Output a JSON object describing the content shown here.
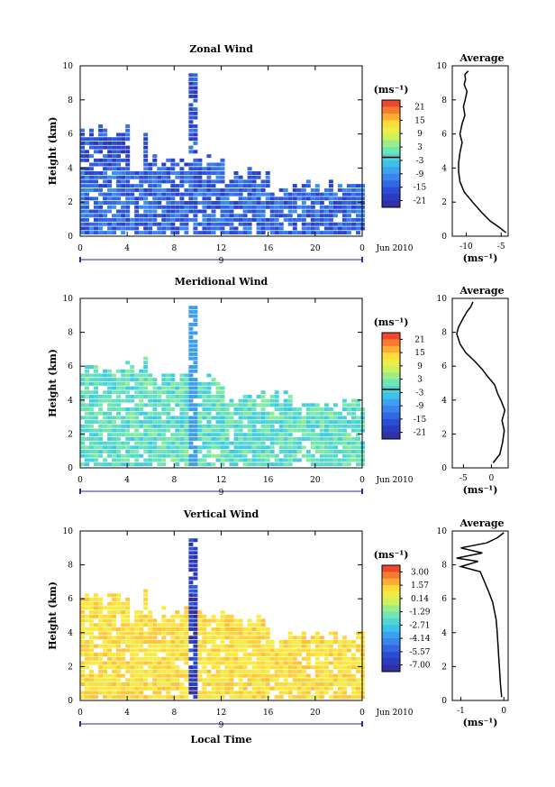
{
  "figure": {
    "xlabel": "Local Time",
    "date_label": "Jun 2010"
  },
  "chart_data": [
    {
      "type": "heatmap",
      "title": "Zonal Wind",
      "ylabel": "Height (km)",
      "xlabel": "",
      "xlim": [
        0,
        24
      ],
      "ylim": [
        0,
        10
      ],
      "x_ticks": [
        "0",
        "4",
        "8",
        "12",
        "16",
        "20",
        "0"
      ],
      "y_ticks": [
        "0",
        "2",
        "4",
        "6",
        "8",
        "10"
      ],
      "date_marker": "9",
      "colorbar": {
        "unit": "(ms⁻¹)",
        "ticks": [
          "21",
          "15",
          "9",
          "3",
          "-3",
          "-9",
          "-15",
          "-21"
        ],
        "zero_line_value": 0
      },
      "field": {
        "dominant_range": [
          -21,
          -3
        ],
        "description_tones": [
          "blue",
          "light blue",
          "cyan"
        ]
      }
    },
    {
      "type": "line",
      "title": "Average",
      "xlabel": "(ms⁻¹)",
      "x_ticks": [
        "-10",
        "-5"
      ],
      "y_ticks": [
        "0",
        "2",
        "4",
        "6",
        "8",
        "10"
      ],
      "xlim": [
        -12,
        -4
      ],
      "ylim": [
        0,
        10
      ],
      "x": [
        -4.3,
        -5.2,
        -6.6,
        -7.8,
        -9.1,
        -10.3,
        -10.9,
        -11.1,
        -11.1,
        -10.9,
        -10.6,
        -10.9,
        -10.6,
        -10.2,
        -10.4,
        -10.1,
        -9.9,
        -10.3,
        -10.1,
        -10.2,
        -9.7
      ],
      "y": [
        0.2,
        0.5,
        0.9,
        1.4,
        2.0,
        2.6,
        3.2,
        3.8,
        4.3,
        4.9,
        5.5,
        6.0,
        6.6,
        7.1,
        7.6,
        8.1,
        8.5,
        8.9,
        9.2,
        9.5,
        9.7
      ]
    },
    {
      "type": "heatmap",
      "title": "Meridional Wind",
      "ylabel": "Height (km)",
      "xlabel": "",
      "xlim": [
        0,
        24
      ],
      "ylim": [
        0,
        10
      ],
      "x_ticks": [
        "0",
        "4",
        "8",
        "12",
        "16",
        "20",
        "0"
      ],
      "y_ticks": [
        "0",
        "2",
        "4",
        "6",
        "8",
        "10"
      ],
      "date_marker": "9",
      "colorbar": {
        "unit": "(ms⁻¹)",
        "ticks": [
          "21",
          "15",
          "9",
          "3",
          "-3",
          "-9",
          "-15",
          "-21"
        ],
        "zero_line_value": 0
      },
      "field": {
        "dominant_range": [
          -6,
          6
        ],
        "description_tones": [
          "cyan",
          "green"
        ]
      }
    },
    {
      "type": "line",
      "title": "Average",
      "xlabel": "(ms⁻¹)",
      "x_ticks": [
        "-5",
        "0"
      ],
      "y_ticks": [
        "0",
        "2",
        "4",
        "6",
        "8",
        "10"
      ],
      "xlim": [
        -7,
        3
      ],
      "ylim": [
        0,
        10
      ],
      "x": [
        0.3,
        1.5,
        2.0,
        2.3,
        1.9,
        2.4,
        1.7,
        1.1,
        0.6,
        -0.7,
        -1.6,
        -3.0,
        -4.6,
        -5.6,
        -6.2,
        -5.9,
        -5.1,
        -4.4,
        -3.7,
        -3.3
      ],
      "y": [
        0.3,
        0.8,
        1.5,
        2.2,
        2.8,
        3.4,
        4.0,
        4.4,
        4.9,
        5.4,
        5.8,
        6.3,
        6.8,
        7.3,
        7.9,
        8.3,
        8.8,
        9.2,
        9.5,
        9.8
      ]
    },
    {
      "type": "heatmap",
      "title": "Vertical Wind",
      "ylabel": "Height (km)",
      "xlabel": "Local Time",
      "xlim": [
        0,
        24
      ],
      "ylim": [
        0,
        10
      ],
      "x_ticks": [
        "0",
        "4",
        "8",
        "12",
        "16",
        "20",
        "0"
      ],
      "y_ticks": [
        "0",
        "2",
        "4",
        "6",
        "8",
        "10"
      ],
      "date_marker": "9",
      "colorbar": {
        "unit": "(ms⁻¹)",
        "ticks": [
          "3.00",
          "1.57",
          "0.14",
          "-1.29",
          "-2.71",
          "-4.14",
          "-5.57",
          "-7.00"
        ]
      },
      "field": {
        "dominant_range": [
          -0.5,
          1.5
        ],
        "description_tones": [
          "yellow",
          "light green"
        ]
      }
    },
    {
      "type": "line",
      "title": "Average",
      "xlabel": "(ms⁻¹)",
      "x_ticks": [
        "-1",
        "0"
      ],
      "y_ticks": [
        "0",
        "2",
        "4",
        "6",
        "8",
        "10"
      ],
      "xlim": [
        -1.2,
        0.1
      ],
      "ylim": [
        0,
        10
      ],
      "x": [
        -0.05,
        -0.08,
        -0.1,
        -0.12,
        -0.14,
        -0.16,
        -0.18,
        -0.22,
        -0.26,
        -0.35,
        -0.45,
        -0.55,
        -1.0,
        -0.6,
        -1.1,
        -0.5,
        -1.0,
        -0.4,
        -0.15,
        0.0
      ],
      "y": [
        0.2,
        1.0,
        1.8,
        2.6,
        3.4,
        4.2,
        4.8,
        5.3,
        5.8,
        6.4,
        7.0,
        7.6,
        7.9,
        8.2,
        8.4,
        8.7,
        9.0,
        9.3,
        9.6,
        9.9
      ]
    }
  ]
}
